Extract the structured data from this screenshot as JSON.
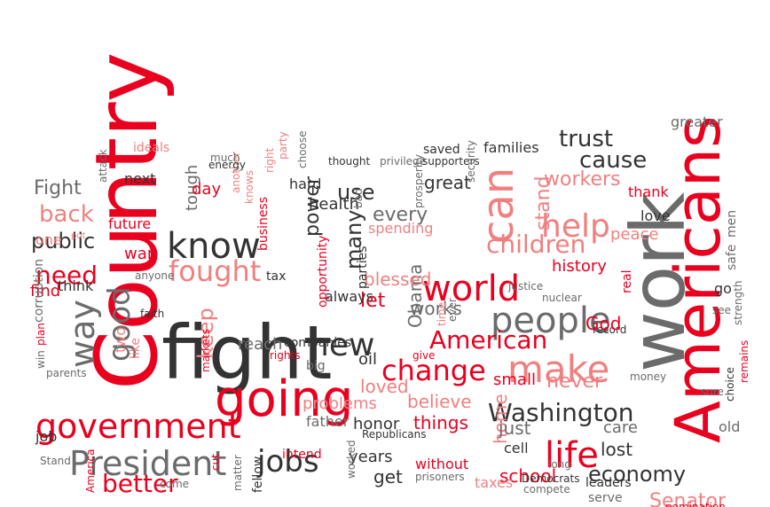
{
  "colors": {
    "red": "#e8001e",
    "dark": "#333333",
    "gray": "#6b6b6b",
    "lightgray": "#9c9c9c",
    "pink": "#f08080"
  },
  "words": [
    {
      "text": "Country",
      "color": "red"
    },
    {
      "text": "fight",
      "color": "dark"
    },
    {
      "text": "going",
      "color": "red"
    },
    {
      "text": "work",
      "color": "gray"
    },
    {
      "text": "Americans",
      "color": "red"
    },
    {
      "text": "government",
      "color": "red"
    },
    {
      "text": "President",
      "color": "gray"
    },
    {
      "text": "people",
      "color": "gray"
    },
    {
      "text": "world",
      "color": "red"
    },
    {
      "text": "make",
      "color": "pink"
    },
    {
      "text": "know",
      "color": "dark"
    },
    {
      "text": "new",
      "color": "dark"
    },
    {
      "text": "change",
      "color": "red"
    },
    {
      "text": "American",
      "color": "red"
    },
    {
      "text": "Washington",
      "color": "dark"
    },
    {
      "text": "life",
      "color": "red"
    },
    {
      "text": "jobs",
      "color": "dark"
    },
    {
      "text": "fought",
      "color": "pink"
    },
    {
      "text": "can",
      "color": "pink"
    },
    {
      "text": "help",
      "color": "pink"
    },
    {
      "text": "children",
      "color": "pink"
    },
    {
      "text": "economy",
      "color": "dark"
    },
    {
      "text": "better",
      "color": "red"
    },
    {
      "text": "good",
      "color": "gray"
    },
    {
      "text": "way",
      "color": "gray"
    },
    {
      "text": "need",
      "color": "red"
    },
    {
      "text": "back",
      "color": "pink"
    },
    {
      "text": "trust",
      "color": "dark"
    },
    {
      "text": "cause",
      "color": "dark"
    },
    {
      "text": "public",
      "color": "dark"
    },
    {
      "text": "Fight",
      "color": "gray"
    },
    {
      "text": "keep",
      "color": "pink"
    },
    {
      "text": "workers",
      "color": "pink"
    },
    {
      "text": "Senator",
      "color": "pink"
    },
    {
      "text": "every",
      "color": "gray"
    },
    {
      "text": "use",
      "color": "dark"
    },
    {
      "text": "great",
      "color": "dark"
    },
    {
      "text": "many",
      "color": "dark"
    },
    {
      "text": "power",
      "color": "dark"
    },
    {
      "text": "Obama",
      "color": "gray"
    },
    {
      "text": "blessed",
      "color": "pink"
    },
    {
      "text": "works",
      "color": "gray"
    },
    {
      "text": "let",
      "color": "red"
    },
    {
      "text": "always",
      "color": "dark"
    },
    {
      "text": "stand",
      "color": "pink"
    },
    {
      "text": "history",
      "color": "red"
    },
    {
      "text": "peace",
      "color": "pink"
    },
    {
      "text": "love",
      "color": "dark"
    },
    {
      "text": "thank",
      "color": "red"
    },
    {
      "text": "men",
      "color": "gray"
    },
    {
      "text": "safe",
      "color": "gray"
    },
    {
      "text": "greater",
      "color": "gray"
    },
    {
      "text": "go",
      "color": "dark"
    },
    {
      "text": "never",
      "color": "pink"
    },
    {
      "text": "small",
      "color": "red"
    },
    {
      "text": "believe",
      "color": "pink"
    },
    {
      "text": "things",
      "color": "red"
    },
    {
      "text": "loved",
      "color": "pink"
    },
    {
      "text": "problems",
      "color": "pink"
    },
    {
      "text": "honor",
      "color": "dark"
    },
    {
      "text": "father",
      "color": "gray"
    },
    {
      "text": "home",
      "color": "pink"
    },
    {
      "text": "just",
      "color": "gray"
    },
    {
      "text": "cell",
      "color": "dark"
    },
    {
      "text": "lost",
      "color": "dark"
    },
    {
      "text": "care",
      "color": "gray"
    },
    {
      "text": "old",
      "color": "gray"
    },
    {
      "text": "school",
      "color": "red"
    },
    {
      "text": "get",
      "color": "dark"
    },
    {
      "text": "years",
      "color": "dark"
    },
    {
      "text": "without",
      "color": "red"
    },
    {
      "text": "taxes",
      "color": "pink"
    },
    {
      "text": "prisoners",
      "color": "gray"
    },
    {
      "text": "compete",
      "color": "gray"
    },
    {
      "text": "Democrats",
      "color": "dark"
    },
    {
      "text": "leaders",
      "color": "dark"
    },
    {
      "text": "serve",
      "color": "gray"
    },
    {
      "text": "long",
      "color": "gray"
    },
    {
      "text": "record",
      "color": "dark"
    },
    {
      "text": "God",
      "color": "red"
    },
    {
      "text": "nuclear",
      "color": "gray"
    },
    {
      "text": "justice",
      "color": "gray"
    },
    {
      "text": "real",
      "color": "red"
    },
    {
      "text": "reach",
      "color": "gray"
    },
    {
      "text": "companies",
      "color": "dark"
    },
    {
      "text": "oil",
      "color": "dark"
    },
    {
      "text": "big",
      "color": "gray"
    },
    {
      "text": "tax",
      "color": "dark"
    },
    {
      "text": "parties",
      "color": "dark"
    },
    {
      "text": "opportunity",
      "color": "red"
    },
    {
      "text": "spending",
      "color": "pink"
    },
    {
      "text": "tough",
      "color": "gray"
    },
    {
      "text": "day",
      "color": "red"
    },
    {
      "text": "future",
      "color": "red"
    },
    {
      "text": "war",
      "color": "red"
    },
    {
      "text": "find",
      "color": "red"
    },
    {
      "text": "think",
      "color": "dark"
    },
    {
      "text": "anyone",
      "color": "gray"
    },
    {
      "text": "faith",
      "color": "dark"
    },
    {
      "text": "two",
      "color": "pink"
    },
    {
      "text": "like",
      "color": "pink"
    },
    {
      "text": "markets",
      "color": "red"
    },
    {
      "text": "rights",
      "color": "red"
    },
    {
      "text": "business",
      "color": "red"
    },
    {
      "text": "hard",
      "color": "dark"
    },
    {
      "text": "health",
      "color": "dark"
    },
    {
      "text": "thought",
      "color": "dark"
    },
    {
      "text": "privilege",
      "color": "gray"
    },
    {
      "text": "supporters",
      "color": "dark"
    },
    {
      "text": "saved",
      "color": "dark"
    },
    {
      "text": "families",
      "color": "dark"
    },
    {
      "text": "security",
      "color": "gray"
    },
    {
      "text": "prosperity",
      "color": "gray"
    },
    {
      "text": "choose",
      "color": "gray"
    },
    {
      "text": "party",
      "color": "pink"
    },
    {
      "text": "right",
      "color": "pink"
    },
    {
      "text": "knows",
      "color": "pink"
    },
    {
      "text": "another",
      "color": "pink"
    },
    {
      "text": "energy",
      "color": "dark"
    },
    {
      "text": "much",
      "color": "gray"
    },
    {
      "text": "ideals",
      "color": "pink"
    },
    {
      "text": "next",
      "color": "dark"
    },
    {
      "text": "attack",
      "color": "gray"
    },
    {
      "text": "one",
      "color": "pink"
    },
    {
      "text": "put",
      "color": "pink"
    },
    {
      "text": "corruption",
      "color": "gray"
    },
    {
      "text": "plan",
      "color": "red"
    },
    {
      "text": "win",
      "color": "gray"
    },
    {
      "text": "parents",
      "color": "gray"
    },
    {
      "text": "job",
      "color": "dark"
    },
    {
      "text": "Stand",
      "color": "gray"
    },
    {
      "text": "America",
      "color": "red"
    },
    {
      "text": "come",
      "color": "gray"
    },
    {
      "text": "cut",
      "color": "red"
    },
    {
      "text": "matter",
      "color": "gray"
    },
    {
      "text": "fellow",
      "color": "dark"
    },
    {
      "text": "intend",
      "color": "red"
    },
    {
      "text": "worked",
      "color": "gray"
    },
    {
      "text": "Republicans",
      "color": "dark"
    },
    {
      "text": "give",
      "color": "red"
    },
    {
      "text": "time",
      "color": "pink"
    },
    {
      "text": "ever",
      "color": "gray"
    },
    {
      "text": "bad",
      "color": "gray"
    },
    {
      "text": "money",
      "color": "gray"
    },
    {
      "text": "sure",
      "color": "gray"
    },
    {
      "text": "choice",
      "color": "dark"
    },
    {
      "text": "remains",
      "color": "red"
    },
    {
      "text": "strength",
      "color": "gray"
    },
    {
      "text": "see",
      "color": "gray"
    },
    {
      "text": "nomination",
      "color": "red"
    }
  ]
}
